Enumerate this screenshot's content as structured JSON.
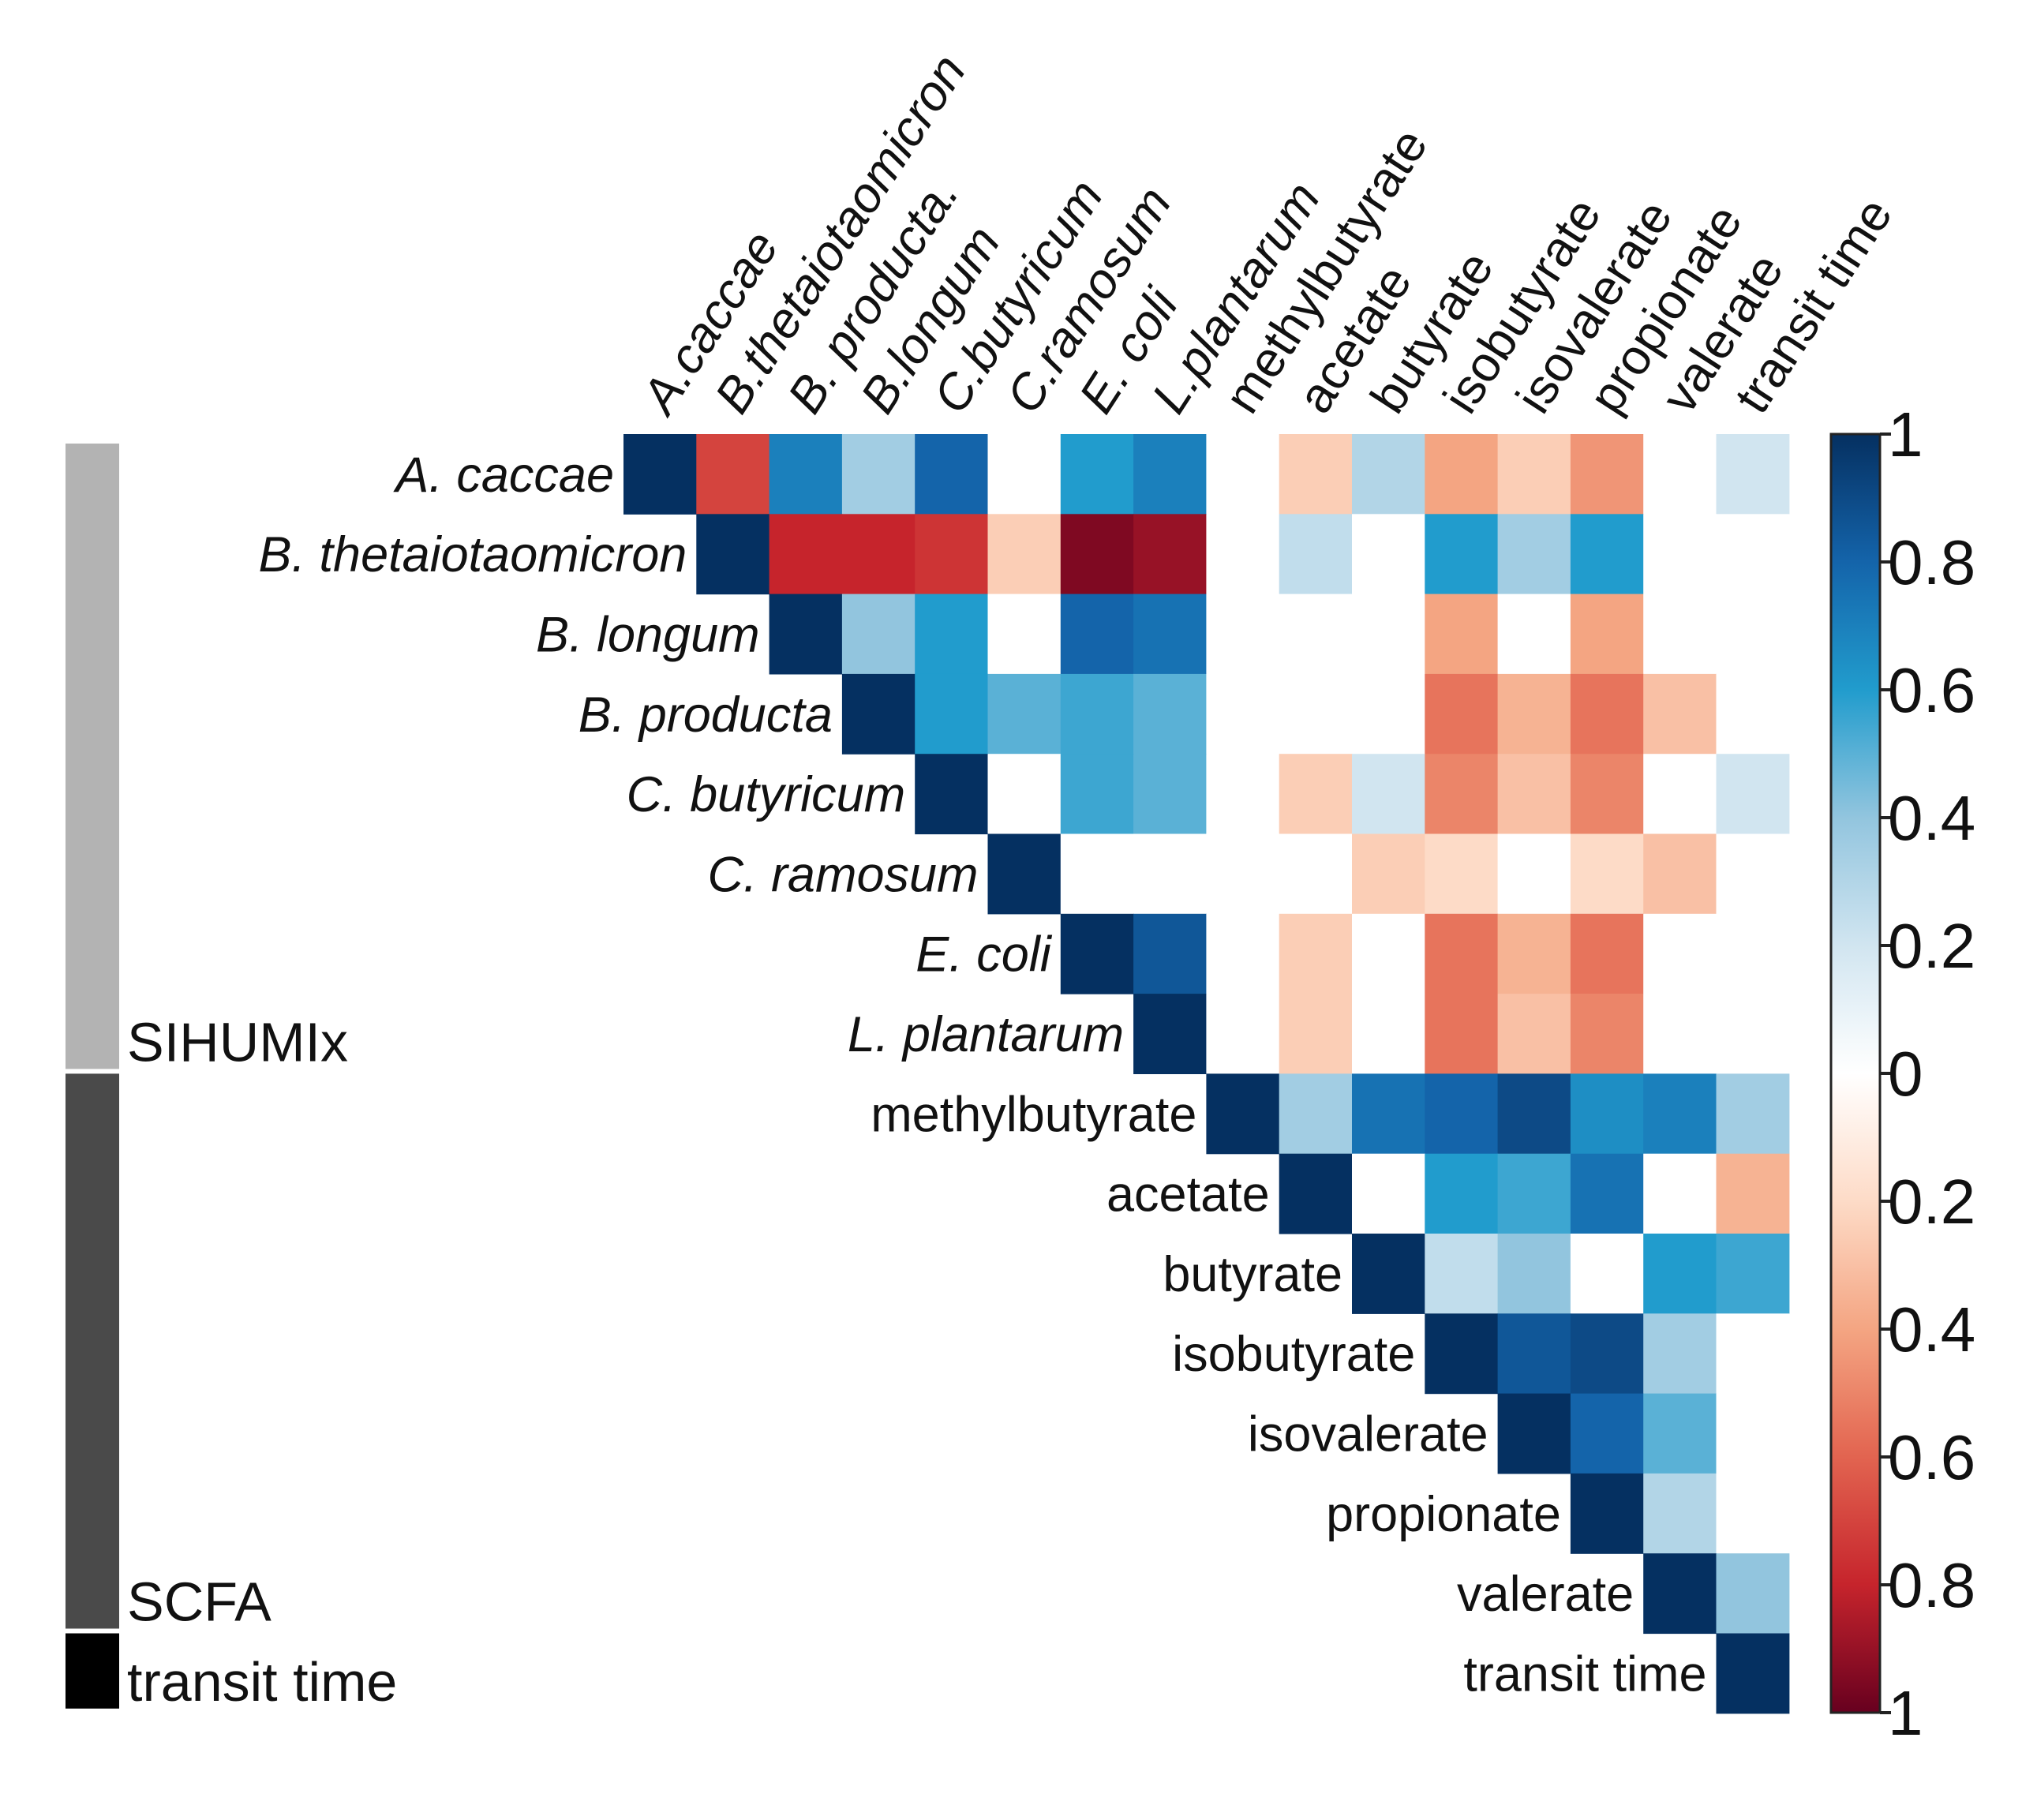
{
  "chart_data": {
    "type": "heatmap",
    "layout": "upper-triangle",
    "col_labels": [
      "A.caccae",
      "B.thetaiotaomicron",
      "B. producta.",
      "B.longum",
      "C.butyricum",
      "C.ramosum",
      "E. coli",
      "L.plantarum",
      "methylbutyrate",
      "acetate",
      "butyrate",
      "isobutyrate",
      "isovalerate",
      "propionate",
      "valerate",
      "transit time"
    ],
    "row_labels": [
      "A. caccae",
      "B. thetaiotaomicron",
      "B. longum",
      "B. producta",
      "C. butyricum",
      "C. ramosum",
      "E. coli",
      "L. plantarum",
      "methylbutyrate",
      "acetate",
      "butyrate",
      "isobutyrate",
      "isovalerate",
      "propionate",
      "valerate",
      "transit time"
    ],
    "italic_labels": 8,
    "values": [
      [
        1,
        -0.7,
        0.7,
        0.35,
        0.8,
        0,
        0.6,
        0.7,
        0,
        -0.25,
        0.3,
        -0.4,
        -0.25,
        -0.45,
        0,
        0.2
      ],
      [
        null,
        1,
        -0.8,
        -0.8,
        -0.75,
        -0.25,
        -0.95,
        -0.9,
        0,
        0.25,
        0,
        0.6,
        0.35,
        0.6,
        0,
        0
      ],
      [
        null,
        null,
        1,
        0.4,
        0.6,
        0,
        0.8,
        0.75,
        0,
        0,
        0,
        -0.4,
        0,
        -0.4,
        0,
        0
      ],
      [
        null,
        null,
        null,
        1,
        0.6,
        0.5,
        0.55,
        0.5,
        0,
        0,
        0,
        -0.55,
        -0.35,
        -0.55,
        -0.3,
        0
      ],
      [
        null,
        null,
        null,
        null,
        1,
        0,
        0.55,
        0.5,
        0,
        -0.25,
        0.2,
        -0.5,
        -0.3,
        -0.5,
        0,
        0.2
      ],
      [
        null,
        null,
        null,
        null,
        null,
        1,
        0,
        0,
        0,
        0,
        -0.25,
        -0.2,
        0,
        -0.2,
        -0.3,
        0
      ],
      [
        null,
        null,
        null,
        null,
        null,
        null,
        1,
        0.85,
        0,
        -0.25,
        0,
        -0.55,
        -0.35,
        -0.55,
        0,
        0
      ],
      [
        null,
        null,
        null,
        null,
        null,
        null,
        null,
        1,
        0,
        -0.25,
        0,
        -0.55,
        -0.3,
        -0.5,
        0,
        0
      ],
      [
        null,
        null,
        null,
        null,
        null,
        null,
        null,
        null,
        1,
        0.35,
        0.75,
        0.8,
        0.9,
        0.65,
        0.7,
        0.35
      ],
      [
        null,
        null,
        null,
        null,
        null,
        null,
        null,
        null,
        null,
        1,
        0,
        0.6,
        0.55,
        0.75,
        0,
        -0.35
      ],
      [
        null,
        null,
        null,
        null,
        null,
        null,
        null,
        null,
        null,
        null,
        1,
        0.25,
        0.4,
        0,
        0.6,
        0.55
      ],
      [
        null,
        null,
        null,
        null,
        null,
        null,
        null,
        null,
        null,
        null,
        null,
        1,
        0.85,
        0.9,
        0.35,
        0
      ],
      [
        null,
        null,
        null,
        null,
        null,
        null,
        null,
        null,
        null,
        null,
        null,
        null,
        1,
        0.8,
        0.5,
        0
      ],
      [
        null,
        null,
        null,
        null,
        null,
        null,
        null,
        null,
        null,
        null,
        null,
        null,
        null,
        1,
        0.3,
        0
      ],
      [
        null,
        null,
        null,
        null,
        null,
        null,
        null,
        null,
        null,
        null,
        null,
        null,
        null,
        null,
        1,
        0.4
      ],
      [
        null,
        null,
        null,
        null,
        null,
        null,
        null,
        null,
        null,
        null,
        null,
        null,
        null,
        null,
        null,
        1
      ]
    ],
    "colorbar": {
      "range": [
        -1,
        1
      ],
      "ticks": [
        1,
        0.8,
        0.6,
        0.4,
        0.2,
        0,
        -0.2,
        -0.4,
        -0.6,
        -0.8,
        -1
      ],
      "tick_labels": [
        "1",
        "0.8",
        "0.6",
        "0.4",
        "0.2",
        "0",
        "0.2",
        "0.4",
        "0.6",
        "0.8",
        "1"
      ],
      "colors": {
        "positive_max": "#053061",
        "zero": "#ffffff",
        "negative_max": "#67001f"
      }
    },
    "groups": [
      {
        "label": "SIHUMIx",
        "rows": [
          0,
          7
        ],
        "color": "#b3b3b3"
      },
      {
        "label": "SCFA",
        "rows": [
          8,
          14
        ],
        "color": "#4a4a4a"
      },
      {
        "label": "transit time",
        "rows": [
          15,
          15
        ],
        "color": "#000000"
      }
    ]
  }
}
